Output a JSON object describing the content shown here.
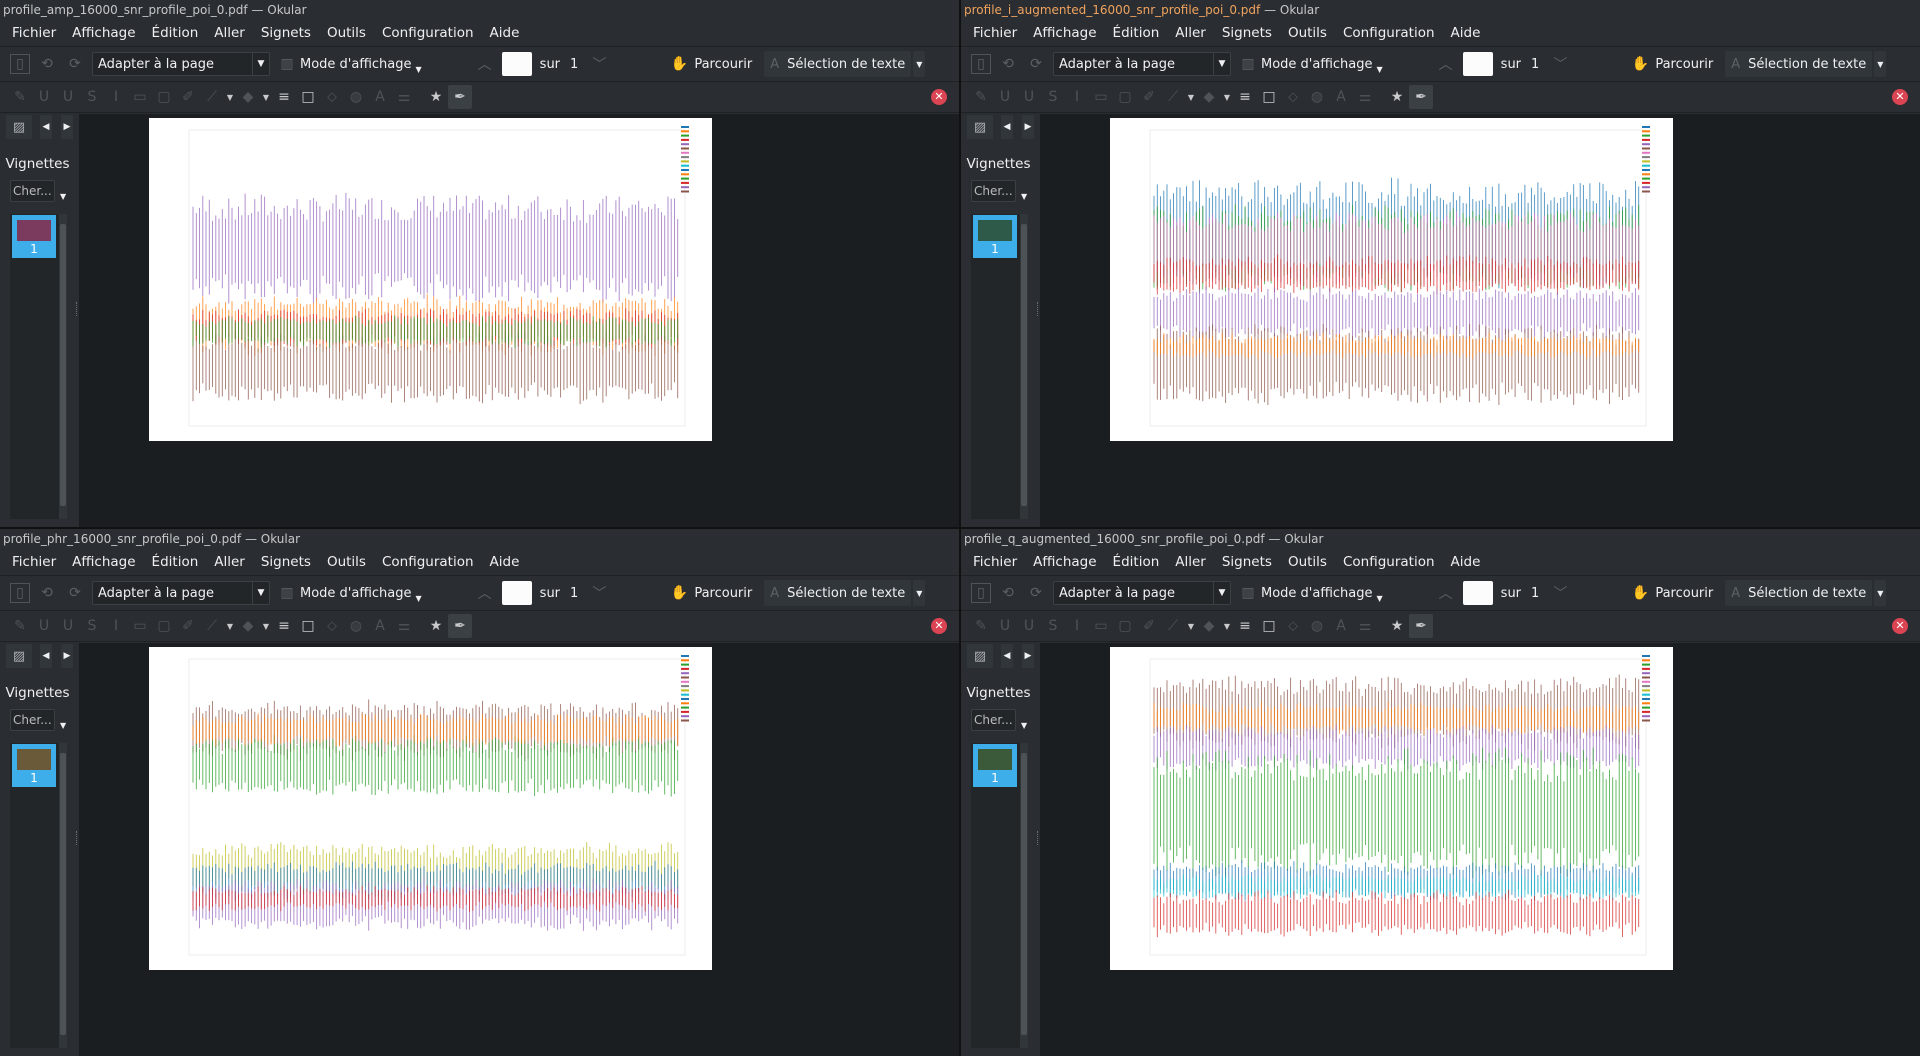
{
  "menu": [
    "Fichier",
    "Affichage",
    "Édition",
    "Aller",
    "Signets",
    "Outils",
    "Configuration",
    "Aide"
  ],
  "toolbar": {
    "zoom": "Adapter à la page",
    "view_mode": "Mode d'affichage",
    "page_of": "sur",
    "page_total": "1",
    "browse": "Parcourir",
    "select_text": "Sélection de texte"
  },
  "sidebar": {
    "title": "Vignettes",
    "search_placeholder": "Cher...",
    "thumb_number": "1"
  },
  "windows": [
    {
      "title": "profile_amp_16000_snr_profile_poi_0.pdf",
      "app": "— Okular",
      "active": false,
      "thumb_color": "#7a3b5e",
      "bands": [
        {
          "color": "#9467bd",
          "y": 0.25,
          "h": 0.3
        },
        {
          "color": "#ff7f0e",
          "y": 0.58,
          "h": 0.16
        },
        {
          "color": "#d62728",
          "y": 0.62,
          "h": 0.1
        },
        {
          "color": "#8c564b",
          "y": 0.7,
          "h": 0.2
        },
        {
          "color": "#2ca02c",
          "y": 0.64,
          "h": 0.08
        }
      ]
    },
    {
      "title": "profile_i_augmented_16000_snr_profile_poi_0.pdf",
      "app": "— Okular",
      "active": true,
      "thumb_color": "#2e5a4a",
      "bands": [
        {
          "color": "#1f77b4",
          "y": 0.2,
          "h": 0.3
        },
        {
          "color": "#2ca02c",
          "y": 0.28,
          "h": 0.24
        },
        {
          "color": "#e377c2",
          "y": 0.3,
          "h": 0.2
        },
        {
          "color": "#d62728",
          "y": 0.44,
          "h": 0.1
        },
        {
          "color": "#9467bd",
          "y": 0.55,
          "h": 0.14
        },
        {
          "color": "#8c564b",
          "y": 0.68,
          "h": 0.22
        },
        {
          "color": "#ff7f0e",
          "y": 0.7,
          "h": 0.06
        }
      ]
    },
    {
      "title": "profile_phr_16000_snr_profile_poi_0.pdf",
      "app": "— Okular",
      "active": false,
      "thumb_color": "#6b5a3a",
      "bands": [
        {
          "color": "#8c564b",
          "y": 0.16,
          "h": 0.16
        },
        {
          "color": "#2ca02c",
          "y": 0.28,
          "h": 0.16
        },
        {
          "color": "#ff7f0e",
          "y": 0.2,
          "h": 0.08
        },
        {
          "color": "#bcbd22",
          "y": 0.64,
          "h": 0.14
        },
        {
          "color": "#1f77b4",
          "y": 0.7,
          "h": 0.1
        },
        {
          "color": "#9467bd",
          "y": 0.76,
          "h": 0.14
        },
        {
          "color": "#d62728",
          "y": 0.78,
          "h": 0.06
        }
      ]
    },
    {
      "title": "profile_q_augmented_16000_snr_profile_poi_0.pdf",
      "app": "— Okular",
      "active": false,
      "thumb_color": "#3a5a3a",
      "bands": [
        {
          "color": "#8c564b",
          "y": 0.08,
          "h": 0.2
        },
        {
          "color": "#ff7f0e",
          "y": 0.16,
          "h": 0.08
        },
        {
          "color": "#9467bd",
          "y": 0.24,
          "h": 0.12
        },
        {
          "color": "#2ca02c",
          "y": 0.34,
          "h": 0.36
        },
        {
          "color": "#1f77b4",
          "y": 0.7,
          "h": 0.1
        },
        {
          "color": "#17becf",
          "y": 0.74,
          "h": 0.06
        },
        {
          "color": "#d62728",
          "y": 0.8,
          "h": 0.12
        }
      ]
    }
  ]
}
